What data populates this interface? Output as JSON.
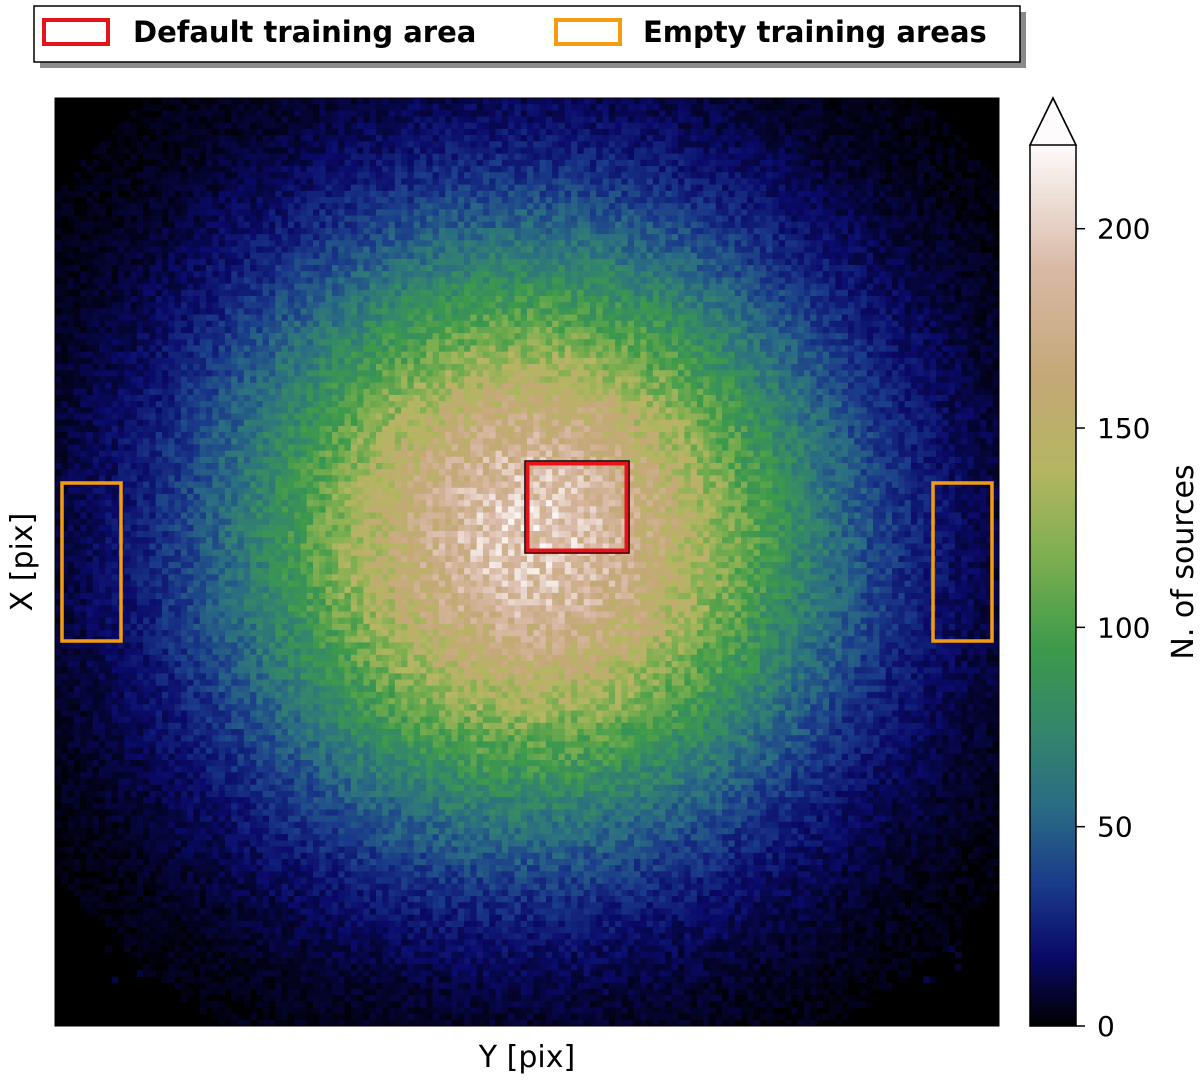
{
  "chart_data": {
    "type": "heatmap",
    "title": "",
    "xlabel": "Y [pix]",
    "ylabel": "X [pix]",
    "colorbar": {
      "label": "N. of sources",
      "ticks": [
        0,
        50,
        100,
        150,
        200
      ],
      "range": [
        0,
        221
      ],
      "extend": "max",
      "colormap": "gist_earth"
    },
    "distribution": {
      "shape": "radial, peaked at centre",
      "peak_value": 221,
      "background_value": 0,
      "bins_per_axis": 150
    },
    "legend": {
      "placement": "top",
      "entries": [
        {
          "label": "Default training area",
          "edge_color": "#e8121a"
        },
        {
          "label": "Empty training areas",
          "edge_color": "#f39c12"
        }
      ]
    },
    "regions": [
      {
        "name": "Default training area",
        "color": "#e8121a"
      },
      {
        "name": "Empty training areas",
        "color": "#f39c12",
        "count": 2
      }
    ]
  }
}
